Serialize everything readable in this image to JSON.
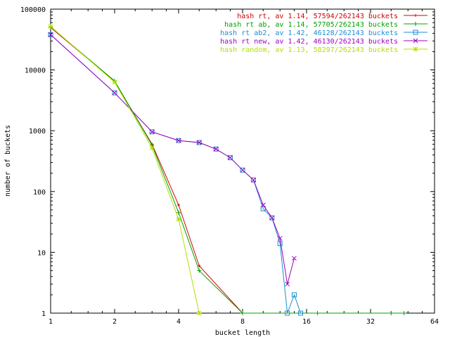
{
  "chart_data": {
    "type": "line",
    "xscale": "log2",
    "yscale": "log10",
    "xlim": [
      1,
      64
    ],
    "ylim": [
      1,
      100000
    ],
    "xticks": [
      1,
      2,
      4,
      8,
      16,
      32,
      64
    ],
    "xtick_labels": [
      "1",
      "2",
      "4",
      "8",
      "16",
      "32",
      "64"
    ],
    "yticks": [
      1,
      10,
      100,
      1000,
      10000,
      100000
    ],
    "ytick_labels": [
      "1",
      "10",
      "100",
      "1000",
      "10000",
      "100000"
    ],
    "xlabel": "bucket length",
    "ylabel": "number of buckets",
    "legend_position": "top-right",
    "grid": false,
    "series": [
      {
        "name": "hash rt, av 1.14, 57594/262143 buckets",
        "color": "#d40000",
        "marker": "plus",
        "points": [
          [
            1,
            50000
          ],
          [
            2,
            6500
          ],
          [
            3,
            600
          ],
          [
            4,
            60
          ],
          [
            5,
            6
          ],
          [
            8,
            1
          ]
        ]
      },
      {
        "name": "hash rt ab, av 1.14, 57705/262143 buckets",
        "color": "#00a000",
        "marker": "cross",
        "points": [
          [
            1,
            51000
          ],
          [
            2,
            6600
          ],
          [
            3,
            580
          ],
          [
            4,
            45
          ],
          [
            5,
            5
          ],
          [
            8,
            1
          ],
          [
            18,
            1
          ],
          [
            40,
            1
          ],
          [
            46,
            1
          ]
        ]
      },
      {
        "name": "hash rt ab2, av 1.42, 46128/262143 buckets",
        "color": "#1a8fd0",
        "marker": "square",
        "points": [
          [
            1,
            38000
          ],
          [
            2,
            4200
          ],
          [
            3,
            960
          ],
          [
            4,
            690
          ],
          [
            5,
            640
          ],
          [
            6,
            500
          ],
          [
            7,
            360
          ],
          [
            8,
            225
          ],
          [
            9,
            155
          ],
          [
            10,
            52
          ],
          [
            11,
            37
          ],
          [
            12,
            14
          ],
          [
            13,
            1
          ],
          [
            14,
            2
          ],
          [
            15,
            1
          ]
        ]
      },
      {
        "name": "hash rt new, av 1.42, 46130/262143 buckets",
        "color": "#a000c0",
        "marker": "x",
        "points": [
          [
            1,
            38000
          ],
          [
            2,
            4200
          ],
          [
            3,
            960
          ],
          [
            4,
            690
          ],
          [
            5,
            640
          ],
          [
            6,
            500
          ],
          [
            7,
            360
          ],
          [
            8,
            225
          ],
          [
            9,
            155
          ],
          [
            10,
            60
          ],
          [
            11,
            37
          ],
          [
            12,
            17
          ],
          [
            13,
            3
          ],
          [
            14,
            8
          ]
        ]
      },
      {
        "name": "hash random, av 1.13, 58297/262143 buckets",
        "color": "#b0e000",
        "marker": "star",
        "points": [
          [
            1,
            52000
          ],
          [
            2,
            6300
          ],
          [
            3,
            520
          ],
          [
            4,
            35
          ],
          [
            5,
            1
          ]
        ]
      }
    ]
  }
}
